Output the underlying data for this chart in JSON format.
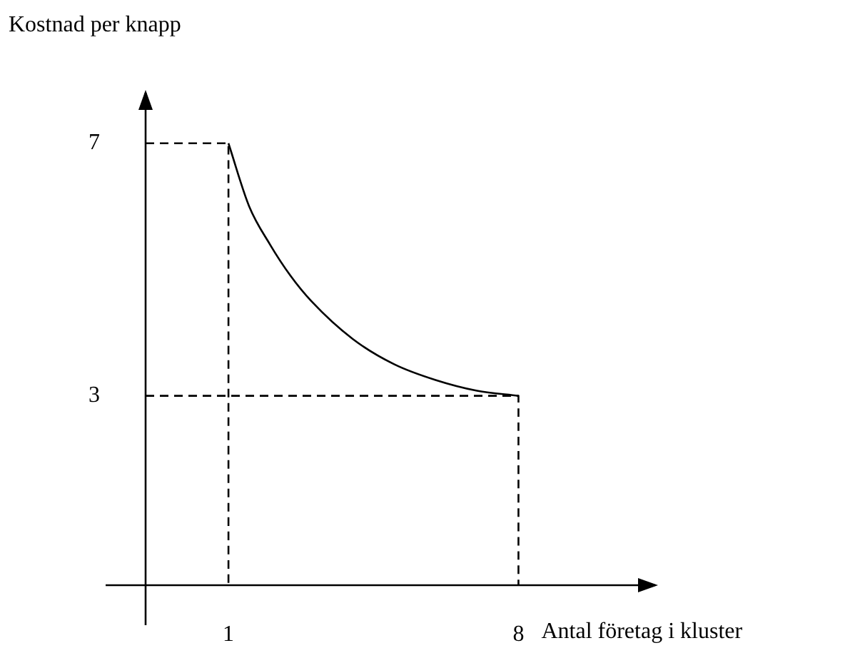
{
  "chart_data": {
    "type": "line",
    "xlabel": "Antal företag i kluster",
    "ylabel": "Kostnad per knapp",
    "xlim": [
      -1,
      11.3
    ],
    "ylim": [
      0,
      7.8
    ],
    "xticks": [
      1,
      8
    ],
    "yticks": [
      3,
      7
    ],
    "grid": false,
    "legend": false,
    "marker": "none",
    "series": [
      {
        "color": "#000000",
        "line_style": "solid",
        "x": [
          1,
          1.5,
          2,
          2.5,
          3,
          4,
          5,
          6,
          7,
          8
        ],
        "values": [
          7,
          6,
          5.4,
          4.9,
          4.5,
          3.9,
          3.5,
          3.25,
          3.08,
          3
        ]
      },
      {
        "color": "#000000",
        "line_style": "dashed",
        "x": [
          -1,
          1,
          1
        ],
        "values": [
          7,
          7,
          0
        ]
      },
      {
        "color": "#000000",
        "line_style": "dashed",
        "x": [
          -1,
          8,
          8
        ],
        "values": [
          3,
          3,
          0
        ]
      }
    ]
  }
}
